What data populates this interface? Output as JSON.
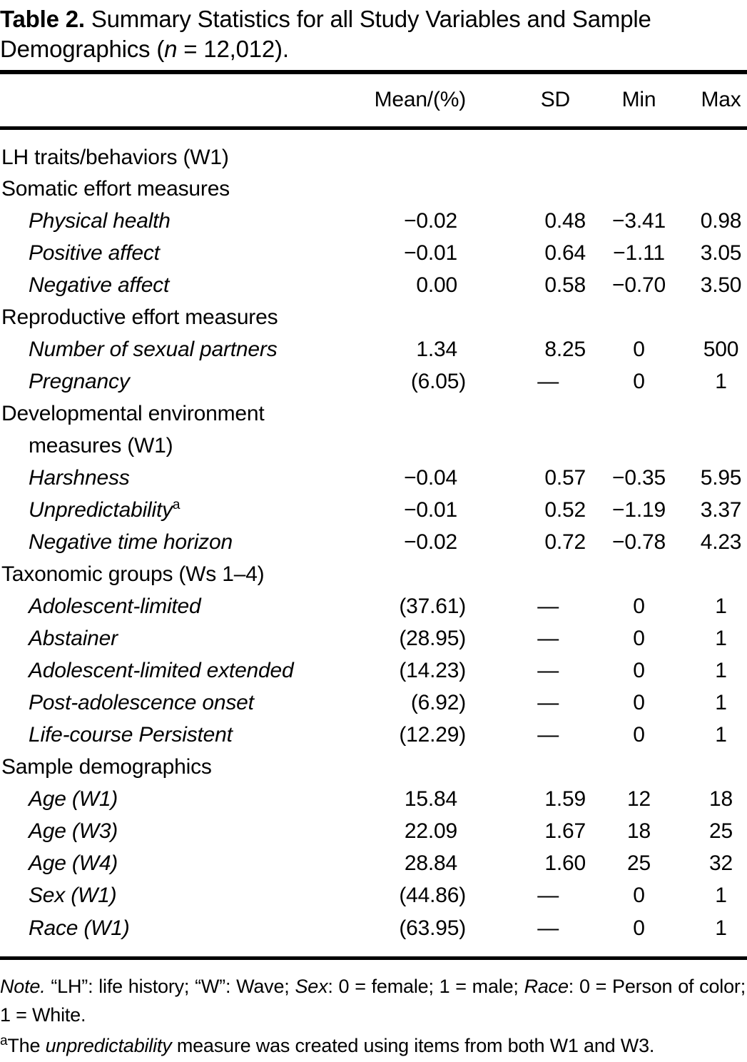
{
  "title": {
    "label": "Table 2.",
    "line1": "Summary Statistics for all Study Variables and Sample",
    "line2_pre": "Demographics (",
    "line2_n": "n",
    "line2_post": " = 12,012)."
  },
  "table": {
    "columns": {
      "variable": "",
      "mean": "Mean/(%)",
      "sd": "SD",
      "min": "Min",
      "max": "Max"
    },
    "rows": [
      {
        "type": "section",
        "label": "LH traits/behaviors (W1)"
      },
      {
        "type": "section",
        "label": "Somatic effort measures"
      },
      {
        "type": "item",
        "label": "Physical health",
        "mean": "−0.02",
        "sd": "0.48",
        "min": "−3.41",
        "max": "0.98"
      },
      {
        "type": "item",
        "label": "Positive affect",
        "mean": "−0.01",
        "sd": "0.64",
        "min": "−1.11",
        "max": "3.05"
      },
      {
        "type": "item",
        "label": "Negative affect",
        "mean": "0.00",
        "sd": "0.58",
        "min": "−0.70",
        "max": "3.50"
      },
      {
        "type": "section",
        "label": "Reproductive effort measures"
      },
      {
        "type": "item",
        "label": "Number of sexual partners",
        "mean": "1.34",
        "sd": "8.25",
        "min": "0",
        "max": "500"
      },
      {
        "type": "item",
        "label": "Pregnancy",
        "mean": "(6.05)",
        "sd": "—",
        "min": "0",
        "max": "1"
      },
      {
        "type": "section",
        "label": "Developmental environment"
      },
      {
        "type": "section-continuation",
        "label": "measures (W1)"
      },
      {
        "type": "item",
        "label": "Harshness",
        "mean": "−0.04",
        "sd": "0.57",
        "min": "−0.35",
        "max": "5.95"
      },
      {
        "type": "item",
        "label": "Unpredictability",
        "sup": "a",
        "mean": "−0.01",
        "sd": "0.52",
        "min": "−1.19",
        "max": "3.37"
      },
      {
        "type": "item",
        "label": "Negative time horizon",
        "mean": "−0.02",
        "sd": "0.72",
        "min": "−0.78",
        "max": "4.23"
      },
      {
        "type": "section",
        "label": "Taxonomic groups (Ws 1–4)"
      },
      {
        "type": "item",
        "label": "Adolescent-limited",
        "mean": "(37.61)",
        "sd": "—",
        "min": "0",
        "max": "1"
      },
      {
        "type": "item",
        "label": "Abstainer",
        "mean": "(28.95)",
        "sd": "—",
        "min": "0",
        "max": "1"
      },
      {
        "type": "item",
        "label": "Adolescent-limited extended",
        "mean": "(14.23)",
        "sd": "—",
        "min": "0",
        "max": "1"
      },
      {
        "type": "item",
        "label": "Post-adolescence onset",
        "mean": "(6.92)",
        "sd": "—",
        "min": "0",
        "max": "1"
      },
      {
        "type": "item",
        "label": "Life-course Persistent",
        "mean": "(12.29)",
        "sd": "—",
        "min": "0",
        "max": "1"
      },
      {
        "type": "section",
        "label": "Sample demographics"
      },
      {
        "type": "item",
        "label": "Age (W1)",
        "mean": "15.84",
        "sd": "1.59",
        "min": "12",
        "max": "18"
      },
      {
        "type": "item",
        "label": "Age (W3)",
        "mean": "22.09",
        "sd": "1.67",
        "min": "18",
        "max": "25"
      },
      {
        "type": "item",
        "label": "Age (W4)",
        "mean": "28.84",
        "sd": "1.60",
        "min": "25",
        "max": "32"
      },
      {
        "type": "item",
        "label": "Sex (W1)",
        "mean": "(44.86)",
        "sd": "—",
        "min": "0",
        "max": "1"
      },
      {
        "type": "item",
        "label": "Race (W1)",
        "mean": "(63.95)",
        "sd": "—",
        "min": "0",
        "max": "1"
      }
    ]
  },
  "notes": {
    "note_label": "Note.",
    "seg1": " “LH”: life history; “W”: Wave; ",
    "sex_label": "Sex",
    "seg2": ": 0 = female; 1 = male; ",
    "race_label": "Race",
    "seg3": ": 0 = Person of color; 1 = White.",
    "fn_sup": "a",
    "fn_pre": "The ",
    "fn_italic": "unpredictability",
    "fn_post": " measure was created using items from both W1 and W3."
  }
}
